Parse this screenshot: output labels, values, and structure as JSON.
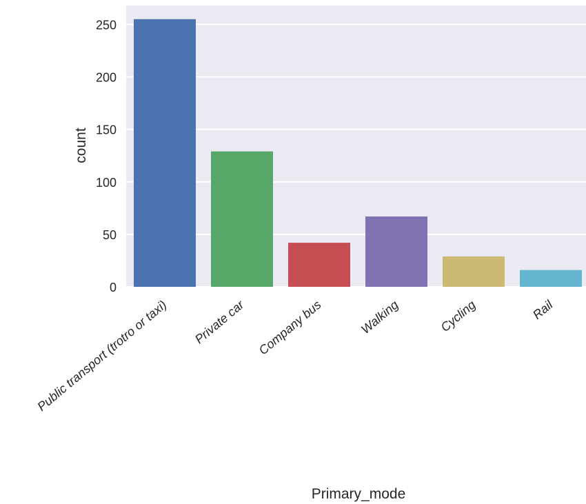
{
  "chart_data": {
    "type": "bar",
    "categories": [
      "Public transport (trotro or taxi)",
      "Private car",
      "Company bus",
      "Walking",
      "Cycling",
      "Rail"
    ],
    "values": [
      255,
      129,
      42,
      67,
      29,
      16
    ],
    "colors": [
      "#4C72B0",
      "#55A868",
      "#C44E52",
      "#8172B2",
      "#CCB974",
      "#64B5CD"
    ],
    "title": "",
    "xlabel": "Primary_mode",
    "ylabel": "count",
    "ylim": [
      0,
      268
    ],
    "yticks": [
      0,
      50,
      100,
      150,
      200,
      250
    ],
    "grid": true,
    "background": "#EAEAF2",
    "grid_color": "#FFFFFF"
  }
}
